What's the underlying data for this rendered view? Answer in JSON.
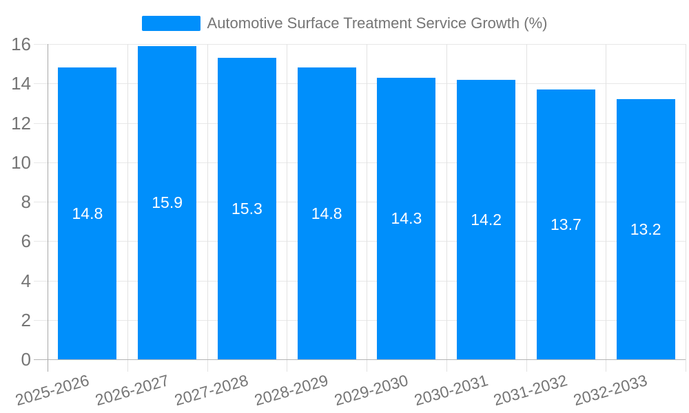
{
  "chart_data": {
    "type": "bar",
    "title": "Automotive Surface Treatment Service Growth (%)",
    "categories": [
      "2025-2026",
      "2026-2027",
      "2027-2028",
      "2028-2029",
      "2029-2030",
      "2030-2031",
      "2031-2032",
      "2032-2033"
    ],
    "values": [
      14.8,
      15.9,
      15.3,
      14.8,
      14.3,
      14.2,
      13.7,
      13.2
    ],
    "data_labels": [
      "14.8",
      "15.9",
      "15.3",
      "14.8",
      "14.3",
      "14.2",
      "13.7",
      "13.2"
    ],
    "xlabel": "",
    "ylabel": "",
    "ylim": [
      0,
      16
    ],
    "ytick_step": 2,
    "ytick_labels": [
      "0",
      "2",
      "4",
      "6",
      "8",
      "10",
      "12",
      "14",
      "16"
    ],
    "grid": true,
    "legend_position": "top"
  },
  "colors": {
    "bar": "#008FFB",
    "data_label_text": "#FFFFFF",
    "axis_text": "#757575",
    "grid_line": "#E7E7E7",
    "vertical_grid_line": "#E2E2E2",
    "axis_line": "#A8A8A8",
    "baseline": "#B3B3B3",
    "background": "#FFFFFF"
  }
}
